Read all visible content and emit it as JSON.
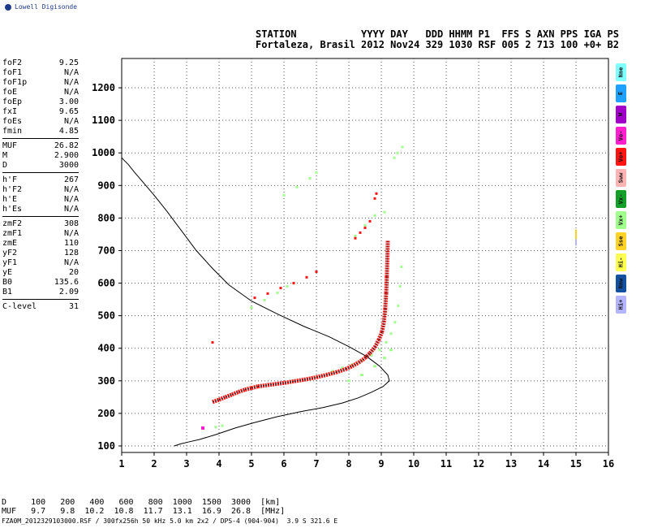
{
  "logo": {
    "text": "Lowell Digisonde",
    "icon": "globe-icon"
  },
  "header": {
    "line1": "STATION           YYYY DAY   DDD HHMM P1  FFS S AXN PPS IGA PS",
    "line2": "Fortaleza, Brasil 2012 Nov24 329 1030 RSF 005 2 713 100 +0+ B2"
  },
  "params": {
    "group1": [
      {
        "name": "foF2",
        "value": "9.25"
      },
      {
        "name": "foF1",
        "value": "N/A"
      },
      {
        "name": "foF1p",
        "value": "N/A"
      },
      {
        "name": "foE",
        "value": "N/A"
      },
      {
        "name": "foEp",
        "value": "3.00"
      },
      {
        "name": "fxI",
        "value": "9.65"
      },
      {
        "name": "foEs",
        "value": "N/A"
      },
      {
        "name": "fmin",
        "value": "4.85"
      }
    ],
    "group2": [
      {
        "name": "MUF",
        "value": "26.82"
      },
      {
        "name": "M",
        "value": "2.900"
      },
      {
        "name": "D",
        "value": "3000"
      }
    ],
    "group3": [
      {
        "name": "h'F",
        "value": "267"
      },
      {
        "name": "h'F2",
        "value": "N/A"
      },
      {
        "name": "h'E",
        "value": "N/A"
      },
      {
        "name": "h'Es",
        "value": "N/A"
      }
    ],
    "group4": [
      {
        "name": "zmF2",
        "value": "308"
      },
      {
        "name": "zmF1",
        "value": "N/A"
      },
      {
        "name": "zmE",
        "value": "110"
      },
      {
        "name": "yF2",
        "value": "128"
      },
      {
        "name": "yF1",
        "value": "N/A"
      },
      {
        "name": "yE",
        "value": "20"
      },
      {
        "name": "B0",
        "value": "135.6"
      },
      {
        "name": "B1",
        "value": "2.09"
      }
    ],
    "group5": [
      {
        "name": "C-level",
        "value": "31"
      }
    ]
  },
  "legend": [
    {
      "label": "Nne",
      "color": "#7fffff"
    },
    {
      "label": "E",
      "color": "#1ea0ff"
    },
    {
      "label": "W",
      "color": "#a000c8"
    },
    {
      "label": "Vo-",
      "color": "#ff1ecc"
    },
    {
      "label": "Vo+",
      "color": "#ff1414"
    },
    {
      "label": "Sww",
      "color": "#ffb4b4"
    },
    {
      "label": "Vx-",
      "color": "#14a028"
    },
    {
      "label": "Vx+",
      "color": "#a0ff8c"
    },
    {
      "label": "Sse",
      "color": "#ffd228"
    },
    {
      "label": "Hi-",
      "color": "#ffff50"
    },
    {
      "label": "Nnw",
      "color": "#1450a0"
    },
    {
      "label": "Hi+",
      "color": "#b4b4ff"
    }
  ],
  "bottom": {
    "d_row": "D     100   200   400   600   800  1000  1500  3000  [km]",
    "muf_row": "MUF   9.7   9.8  10.2  10.8  11.7  13.1  16.9  26.8  [MHz]",
    "footer": "FZA0M_2012329103000.RSF / 300fx256h 50 kHz 5.0 km 2x2 / DPS-4 (904-904)  3.9 S 321.6 E"
  },
  "chart_data": {
    "type": "scatter",
    "xlim": [
      1,
      16
    ],
    "ylim": [
      80,
      1290
    ],
    "x_ticks": [
      1,
      2,
      3,
      4,
      5,
      6,
      7,
      8,
      9,
      10,
      11,
      12,
      13,
      14,
      15,
      16
    ],
    "y_ticks": [
      100,
      200,
      300,
      400,
      500,
      600,
      700,
      800,
      900,
      1000,
      1100,
      1200
    ],
    "grid": true,
    "profile_curve": [
      [
        2.62,
        100
      ],
      [
        2.8,
        106
      ],
      [
        3.05,
        112
      ],
      [
        3.4,
        120
      ],
      [
        3.9,
        135
      ],
      [
        4.5,
        155
      ],
      [
        5.1,
        172
      ],
      [
        5.8,
        190
      ],
      [
        6.5,
        205
      ],
      [
        7.2,
        218
      ],
      [
        7.8,
        232
      ],
      [
        8.3,
        248
      ],
      [
        8.7,
        265
      ],
      [
        9.05,
        282
      ],
      [
        9.25,
        300
      ],
      [
        9.2,
        318
      ],
      [
        8.95,
        345
      ],
      [
        8.55,
        375
      ],
      [
        8.0,
        405
      ],
      [
        7.4,
        435
      ],
      [
        6.6,
        468
      ],
      [
        5.8,
        505
      ],
      [
        5.0,
        545
      ],
      [
        4.3,
        595
      ],
      [
        3.8,
        645
      ],
      [
        3.3,
        700
      ],
      [
        2.85,
        760
      ],
      [
        2.4,
        820
      ],
      [
        2.0,
        870
      ],
      [
        1.7,
        905
      ],
      [
        1.4,
        940
      ],
      [
        1.2,
        965
      ],
      [
        1.0,
        985
      ],
      [
        0.85,
        1000
      ],
      [
        0.75,
        1010
      ]
    ],
    "o_trace": [
      [
        3.8,
        235
      ],
      [
        4.0,
        242
      ],
      [
        4.2,
        250
      ],
      [
        4.4,
        258
      ],
      [
        4.6,
        266
      ],
      [
        4.8,
        273
      ],
      [
        5.0,
        278
      ],
      [
        5.2,
        283
      ],
      [
        5.5,
        287
      ],
      [
        5.8,
        291
      ],
      [
        6.1,
        295
      ],
      [
        6.4,
        300
      ],
      [
        6.7,
        305
      ],
      [
        7.0,
        311
      ],
      [
        7.3,
        318
      ],
      [
        7.6,
        326
      ],
      [
        7.9,
        336
      ],
      [
        8.1,
        345
      ],
      [
        8.3,
        356
      ],
      [
        8.5,
        370
      ],
      [
        8.65,
        385
      ],
      [
        8.8,
        403
      ],
      [
        8.92,
        425
      ],
      [
        9.02,
        450
      ],
      [
        9.08,
        480
      ],
      [
        9.12,
        520
      ],
      [
        9.15,
        570
      ],
      [
        9.17,
        620
      ],
      [
        9.19,
        680
      ],
      [
        9.2,
        730
      ]
    ],
    "o_extra": [
      [
        5.1,
        555
      ],
      [
        5.5,
        568
      ],
      [
        5.9,
        585
      ],
      [
        6.3,
        600
      ],
      [
        6.7,
        618
      ],
      [
        7.0,
        635
      ],
      [
        8.2,
        738
      ],
      [
        8.35,
        755
      ],
      [
        8.5,
        770
      ],
      [
        8.65,
        790
      ],
      [
        8.8,
        860
      ],
      [
        8.85,
        875
      ],
      [
        3.8,
        418
      ],
      [
        3.5,
        155
      ]
    ],
    "x_trace": [
      [
        7.5,
        330
      ],
      [
        7.8,
        340
      ],
      [
        8.1,
        350
      ],
      [
        8.4,
        362
      ],
      [
        8.7,
        378
      ],
      [
        8.95,
        395
      ],
      [
        9.15,
        418
      ],
      [
        9.3,
        445
      ],
      [
        9.42,
        480
      ],
      [
        9.52,
        530
      ],
      [
        9.58,
        590
      ],
      [
        9.62,
        650
      ],
      [
        5.0,
        525
      ],
      [
        5.4,
        548
      ],
      [
        5.8,
        570
      ],
      [
        6.1,
        590
      ],
      [
        6.0,
        870
      ],
      [
        6.4,
        895
      ],
      [
        6.8,
        922
      ],
      [
        7.0,
        940
      ],
      [
        9.4,
        985
      ],
      [
        9.5,
        1000
      ],
      [
        9.65,
        1018
      ],
      [
        3.9,
        158
      ],
      [
        4.1,
        162
      ],
      [
        8.2,
        745
      ],
      [
        8.5,
        778
      ],
      [
        8.8,
        808
      ],
      [
        9.1,
        818
      ]
    ],
    "x_extra_green": [
      [
        8.0,
        300
      ],
      [
        8.4,
        318
      ],
      [
        8.8,
        345
      ],
      [
        9.1,
        370
      ],
      [
        9.3,
        395
      ]
    ],
    "right_marker": {
      "x": 15.0,
      "y_from": 715,
      "y_to": 765
    }
  }
}
